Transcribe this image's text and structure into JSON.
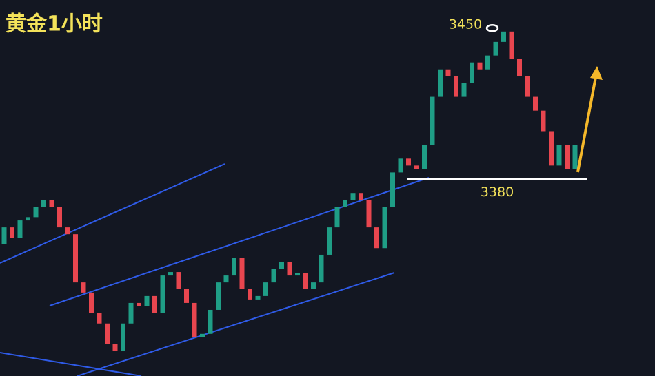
{
  "chart_data": {
    "type": "candlestick",
    "title": "黄金1小时",
    "high_label": 3450,
    "support_label": 3380,
    "up_color": "#1f9e86",
    "down_color": "#e8464f",
    "ylim": [
      3289,
      3463
    ],
    "open": [
      3350.0,
      3357.8,
      3353.0,
      3361.0,
      3362.5,
      3367.3,
      3370.5,
      3367.3,
      3357.8,
      3354.6,
      3332.3,
      3327.6,
      3318.0,
      3313.3,
      3303.7,
      3300.5,
      3313.3,
      3322.8,
      3321.2,
      3326.0,
      3318.0,
      3335.5,
      3337.1,
      3329.2,
      3322.8,
      3306.9,
      3308.5,
      3319.6,
      3332.3,
      3335.5,
      3343.5,
      3329.2,
      3324.4,
      3326.0,
      3332.3,
      3338.7,
      3341.9,
      3335.5,
      3336.8,
      3329.2,
      3332.3,
      3345.1,
      3357.8,
      3367.3,
      3370.5,
      3373.7,
      3370.5,
      3357.8,
      3348.2,
      3367.3,
      3383.2,
      3389.6,
      3386.4,
      3384.8,
      3395.9,
      3418.2,
      3430.9,
      3427.7,
      3418.2,
      3424.6,
      3434.1,
      3430.9,
      3437.3,
      3443.6,
      3448.4,
      3435.7,
      3427.7,
      3418.2,
      3411.8,
      3402.3,
      3386.4,
      3395.9,
      3384.8
    ],
    "close": [
      3357.8,
      3353.0,
      3361.0,
      3362.5,
      3367.3,
      3370.5,
      3367.3,
      3357.8,
      3354.6,
      3332.3,
      3327.6,
      3318.0,
      3313.3,
      3303.7,
      3300.5,
      3313.3,
      3322.8,
      3321.2,
      3326.0,
      3318.0,
      3335.5,
      3337.1,
      3329.2,
      3322.8,
      3306.9,
      3308.5,
      3319.6,
      3332.3,
      3335.5,
      3343.5,
      3329.2,
      3324.4,
      3326.0,
      3332.3,
      3338.7,
      3341.9,
      3335.5,
      3336.8,
      3329.2,
      3332.3,
      3345.1,
      3357.8,
      3367.3,
      3370.5,
      3373.7,
      3370.5,
      3357.8,
      3348.2,
      3367.3,
      3383.2,
      3389.6,
      3386.4,
      3384.8,
      3395.9,
      3418.2,
      3430.9,
      3427.7,
      3418.2,
      3424.6,
      3434.1,
      3430.9,
      3437.3,
      3443.6,
      3448.4,
      3435.7,
      3427.7,
      3418.2,
      3411.8,
      3402.3,
      3386.4,
      3395.9,
      3384.8,
      3395.9
    ]
  }
}
